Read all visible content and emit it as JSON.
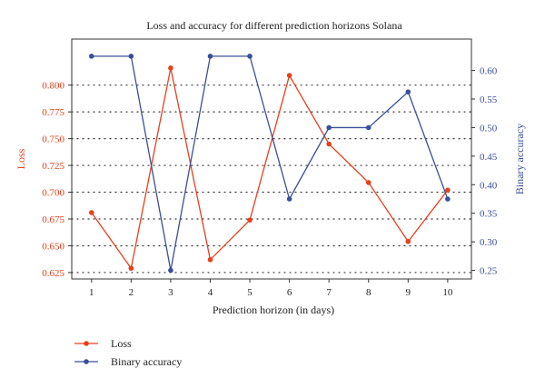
{
  "chart_data": {
    "type": "line",
    "title": "Loss and accuracy for different prediction horizons Solana",
    "xlabel": "Prediction horizon (in days)",
    "ylabel_left": "Loss",
    "ylabel_right": "Binary accuracy",
    "x": [
      1,
      2,
      3,
      4,
      5,
      6,
      7,
      8,
      9,
      10
    ],
    "x_ticks": [
      "1",
      "2",
      "3",
      "4",
      "5",
      "6",
      "7",
      "8",
      "9",
      "10"
    ],
    "xlim": [
      0.5,
      10.6
    ],
    "ylim_left": [
      0.619,
      0.843
    ],
    "ylim_right": [
      0.235,
      0.655
    ],
    "y_ticks_left": [
      "0.625",
      "0.650",
      "0.675",
      "0.700",
      "0.725",
      "0.750",
      "0.775",
      "0.800"
    ],
    "y_ticks_right": [
      "0.25",
      "0.30",
      "0.35",
      "0.40",
      "0.45",
      "0.50",
      "0.55",
      "0.60"
    ],
    "grid": "horizontal-dotted",
    "legend_position": "bottom-left",
    "series": [
      {
        "name": "Loss",
        "axis": "left",
        "color": "#e8401c",
        "values": [
          0.681,
          0.629,
          0.816,
          0.637,
          0.674,
          0.809,
          0.745,
          0.709,
          0.654,
          0.702
        ]
      },
      {
        "name": "Binary accuracy",
        "axis": "right",
        "color": "#3a4f9a",
        "values": [
          0.625,
          0.625,
          0.25,
          0.625,
          0.625,
          0.375,
          0.5,
          0.5,
          0.5625,
          0.375
        ]
      }
    ]
  }
}
